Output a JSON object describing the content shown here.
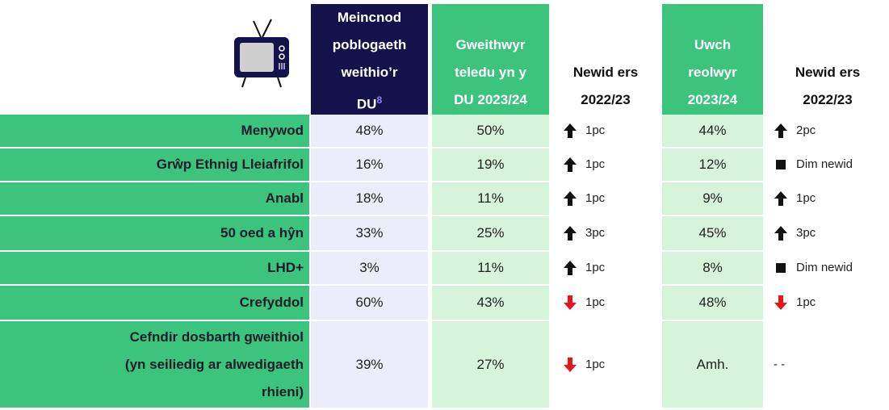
{
  "header": {
    "benchmark": {
      "lines": [
        "Meincnod",
        "poblogaeth",
        "weithio’r",
        "DU"
      ],
      "note": "8"
    },
    "tv": {
      "lines": [
        "Gweithwyr",
        "teledu yn y",
        "DU 2023/24"
      ]
    },
    "tv_change": {
      "lines": [
        "Newid ers",
        "2022/23"
      ]
    },
    "senior": {
      "lines": [
        "Uwch",
        "reolwyr",
        "2023/24"
      ]
    },
    "senior_change": {
      "lines": [
        "Newid ers",
        "2022/23"
      ]
    }
  },
  "rows": [
    {
      "label": [
        "Menywod"
      ],
      "benchmark": "48%",
      "tv": "50%",
      "tv_change": {
        "icon": "up",
        "text": "1pc"
      },
      "senior": "44%",
      "senior_change": {
        "icon": "up",
        "text": "2pc"
      }
    },
    {
      "label": [
        "Grŵp Ethnig Lleiafrifol"
      ],
      "benchmark": "16%",
      "tv": "19%",
      "tv_change": {
        "icon": "up",
        "text": "1pc"
      },
      "senior": "12%",
      "senior_change": {
        "icon": "same",
        "text": "Dim newid"
      }
    },
    {
      "label": [
        "Anabl"
      ],
      "benchmark": "18%",
      "tv": "11%",
      "tv_change": {
        "icon": "up",
        "text": "1pc"
      },
      "senior": "9%",
      "senior_change": {
        "icon": "up",
        "text": "1pc"
      }
    },
    {
      "label": [
        "50 oed a hŷn"
      ],
      "benchmark": "33%",
      "tv": "25%",
      "tv_change": {
        "icon": "up",
        "text": "3pc"
      },
      "senior": "45%",
      "senior_change": {
        "icon": "up",
        "text": "3pc"
      }
    },
    {
      "label": [
        "LHD+"
      ],
      "benchmark": "3%",
      "tv": "11%",
      "tv_change": {
        "icon": "up",
        "text": "1pc"
      },
      "senior": "8%",
      "senior_change": {
        "icon": "same",
        "text": "Dim newid"
      }
    },
    {
      "label": [
        "Crefyddol"
      ],
      "benchmark": "60%",
      "tv": "43%",
      "tv_change": {
        "icon": "down",
        "text": "1pc"
      },
      "senior": "48%",
      "senior_change": {
        "icon": "down",
        "text": "1pc"
      }
    },
    {
      "label": [
        "Cefndir dosbarth gweithiol",
        "(yn seiliedig ar alwedigaeth",
        "rhieni)"
      ],
      "benchmark": "39%",
      "tv": "27%",
      "tv_change": {
        "icon": "down",
        "text": "1pc"
      },
      "senior": "Amh.",
      "senior_change": {
        "text": "-  -"
      }
    }
  ]
}
